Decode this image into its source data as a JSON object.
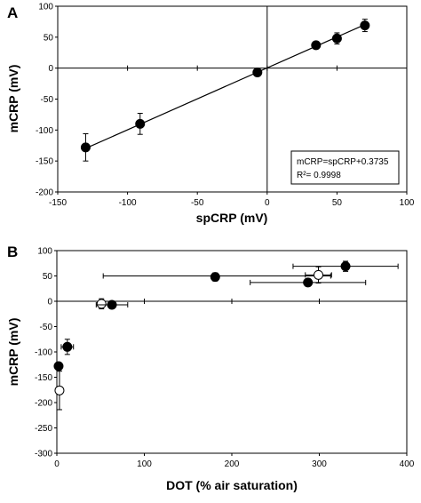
{
  "chart_data": [
    {
      "panel_label": "A",
      "type": "scatter",
      "xlabel": "spCRP (mV)",
      "ylabel": "mCRP (mV)",
      "xlim": [
        -150,
        100
      ],
      "ylim": [
        -200,
        100
      ],
      "xticks": [
        -150,
        -100,
        -50,
        0,
        50,
        100
      ],
      "yticks": [
        -200,
        -150,
        -100,
        -50,
        0,
        50,
        100
      ],
      "grid": false,
      "points": [
        {
          "x": -130,
          "y": -128,
          "yerr": 22,
          "filled": true
        },
        {
          "x": -91,
          "y": -90,
          "yerr": 17,
          "filled": true
        },
        {
          "x": -7,
          "y": -7,
          "yerr": 0,
          "filled": true
        },
        {
          "x": 35,
          "y": 37,
          "yerr": 0,
          "filled": true
        },
        {
          "x": 50,
          "y": 48,
          "yerr": 9,
          "filled": true
        },
        {
          "x": 70,
          "y": 69,
          "yerr": 10,
          "filled": true
        }
      ],
      "fit_line": {
        "slope": 1,
        "intercept": 0.3735,
        "x_range": [
          -130,
          70
        ]
      },
      "annotation": [
        "mCRP=spCRP+0.3735",
        "R²= 0.9998"
      ]
    },
    {
      "panel_label": "B",
      "type": "scatter",
      "xlabel": "DOT (% air saturation)",
      "ylabel": "mCRP (mV)",
      "xlim": [
        0,
        400
      ],
      "ylim": [
        -300,
        100
      ],
      "xticks": [
        0,
        100,
        200,
        300,
        400
      ],
      "yticks": [
        -300,
        -250,
        -200,
        -150,
        -100,
        -50,
        0,
        50,
        100
      ],
      "grid": false,
      "points": [
        {
          "x": 2,
          "y": -128,
          "xerr": 2,
          "yerr": 0,
          "filled": true
        },
        {
          "x": 12,
          "y": -90,
          "xerr": 7,
          "yerr": 15,
          "filled": true
        },
        {
          "x": 3,
          "y": -176,
          "xerr": 2,
          "yerr": 38,
          "filled": false
        },
        {
          "x": 51,
          "y": -5,
          "xerr": 0,
          "yerr": 10,
          "filled": false
        },
        {
          "x": 63,
          "y": -7,
          "xerr": 18,
          "yerr": 0,
          "filled": true
        },
        {
          "x": 181,
          "y": 48,
          "xerr": 0,
          "yerr": 8,
          "filled": true
        },
        {
          "x": 287,
          "y": 37,
          "xerr": 66,
          "yerr": 0,
          "filled": true
        },
        {
          "x": 299,
          "y": 52,
          "xerr": 15,
          "yerr": 16,
          "filled": false
        },
        {
          "x": 330,
          "y": 69,
          "xerr": 60,
          "yerr": 10,
          "filled": true
        }
      ],
      "long_error_bars": [
        {
          "y": 50,
          "x_from": 53,
          "x_to": 313
        }
      ]
    }
  ]
}
